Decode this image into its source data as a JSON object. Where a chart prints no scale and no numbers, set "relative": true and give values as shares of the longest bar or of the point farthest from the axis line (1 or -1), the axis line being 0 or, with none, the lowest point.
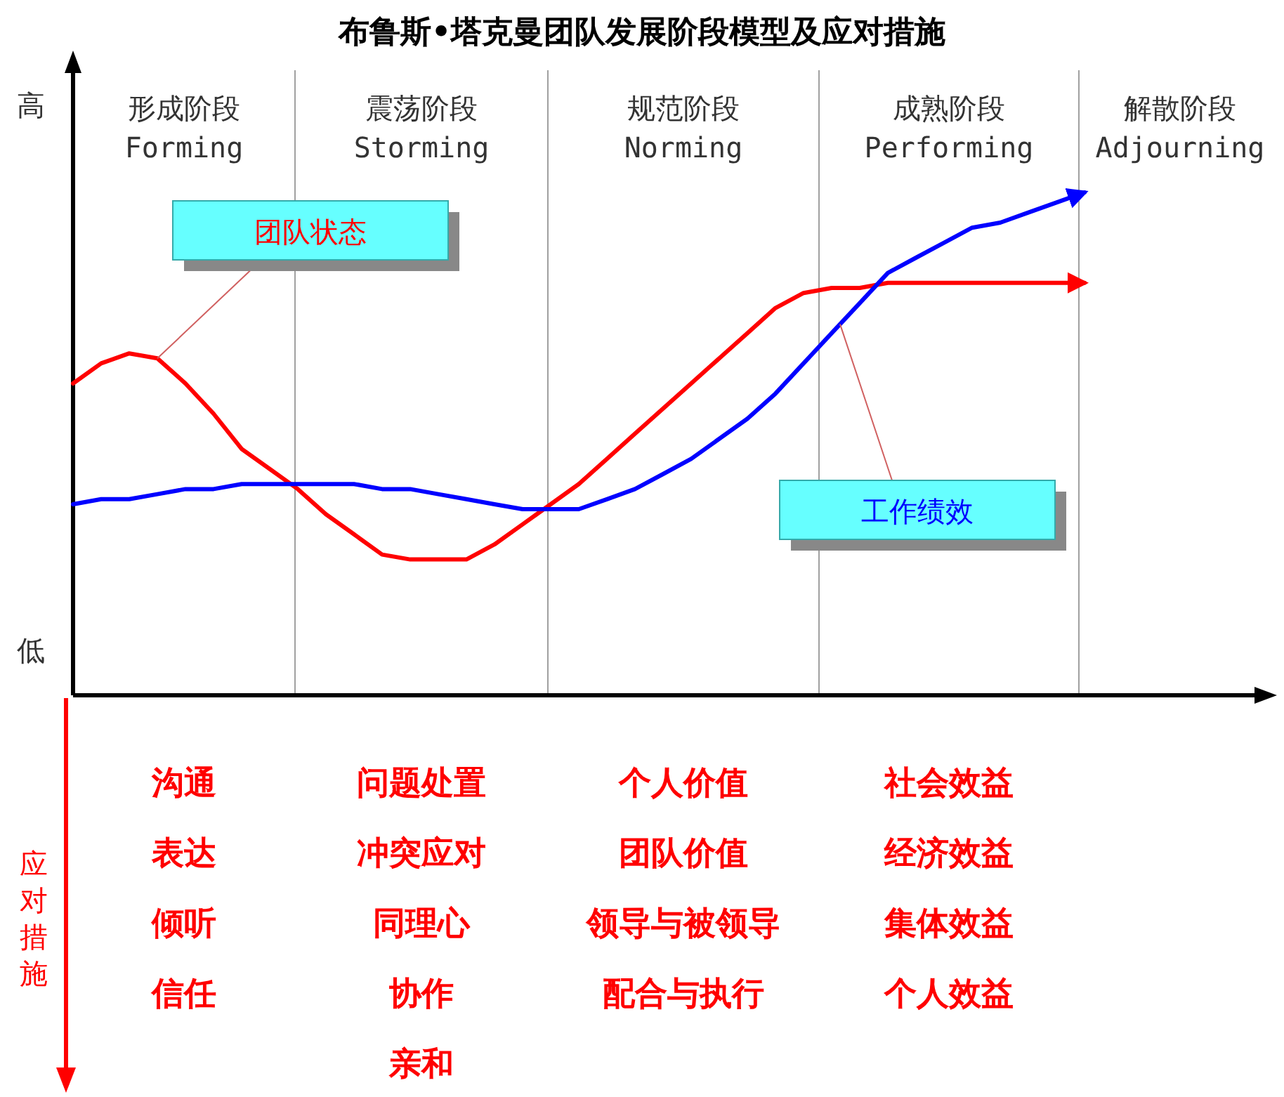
{
  "chart_data": {
    "type": "line",
    "title": "布鲁斯•塔克曼团队发展阶段模型及应对措施",
    "relative": true,
    "legend": false,
    "grid": false,
    "marker": "none",
    "line_style": "solid",
    "categories": [
      null,
      null,
      null,
      null,
      null,
      null,
      null,
      null,
      null,
      null,
      null,
      null,
      null,
      null,
      null,
      null,
      null,
      null,
      null,
      null,
      null,
      null,
      null,
      null,
      null,
      null,
      null,
      null,
      null,
      null,
      null,
      null,
      null,
      null,
      null,
      null,
      null
    ],
    "series": [
      {
        "name": "团队状态",
        "color": "#ff0000",
        "values": [
          0.62,
          0.66,
          0.68,
          0.67,
          0.62,
          0.56,
          0.49,
          0.45,
          0.41,
          0.36,
          0.32,
          0.28,
          0.27,
          0.27,
          0.27,
          0.3,
          0.34,
          0.38,
          0.42,
          0.47,
          0.52,
          0.57,
          0.62,
          0.67,
          0.72,
          0.77,
          0.8,
          0.81,
          0.81,
          0.82,
          0.82,
          0.82,
          0.82,
          0.82,
          0.82,
          0.82,
          0.82
        ]
      },
      {
        "name": "工作绩效",
        "color": "#0000ff",
        "values": [
          0.38,
          0.39,
          0.39,
          0.4,
          0.41,
          0.41,
          0.42,
          0.42,
          0.42,
          0.42,
          0.42,
          0.41,
          0.41,
          0.4,
          0.39,
          0.38,
          0.37,
          0.37,
          0.37,
          0.39,
          0.41,
          0.44,
          0.47,
          0.51,
          0.55,
          0.6,
          0.66,
          0.72,
          0.78,
          0.84,
          0.87,
          0.9,
          0.93,
          0.94,
          0.96,
          0.98,
          1
        ]
      }
    ],
    "annotations": [
      "形成阶段\nForming",
      "震荡阶段\nStorming",
      "规范阶段\nNorming",
      "成熟阶段\nPerforming",
      "解散阶段\nAdjourning",
      "高",
      "低",
      "应对措施",
      "沟通",
      "表达",
      "倾听",
      "信任",
      "问题处置",
      "冲突应对",
      "同理心",
      "协作",
      "亲和",
      "个人价值",
      "团队价值",
      "领导与被领导",
      "配合与执行",
      "社会效益",
      "经济效益",
      "集体效益",
      "个人效益"
    ]
  }
}
